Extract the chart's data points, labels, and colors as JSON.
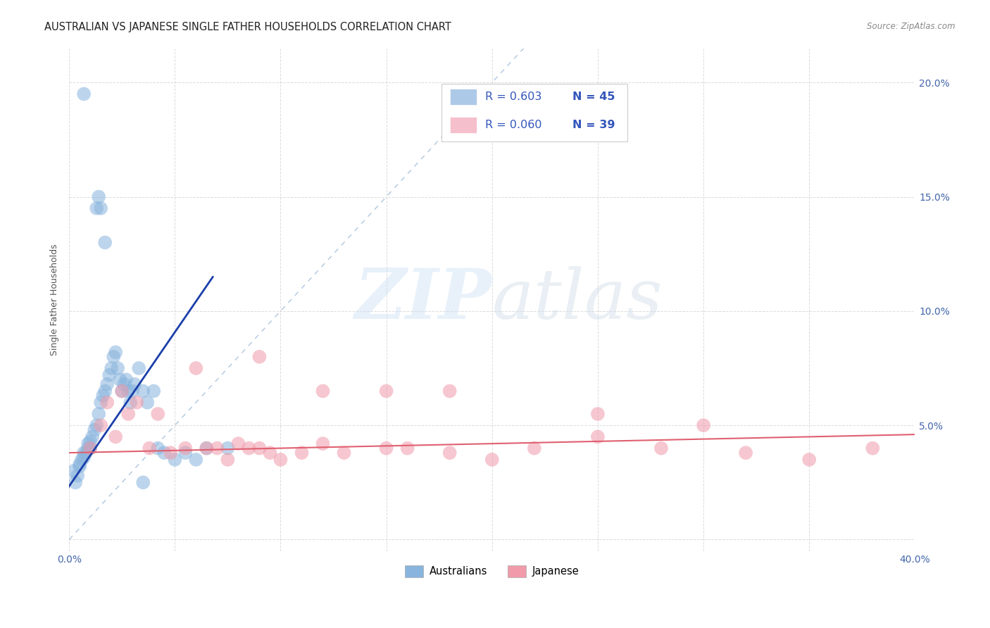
{
  "title": "AUSTRALIAN VS JAPANESE SINGLE FATHER HOUSEHOLDS CORRELATION CHART",
  "source": "Source: ZipAtlas.com",
  "ylabel": "Single Father Households",
  "watermark_zip": "ZIP",
  "watermark_atlas": "atlas",
  "legend_entries": [
    {
      "label_r": "R = 0.603",
      "label_n": "N = 45",
      "color": "#adc9e8"
    },
    {
      "label_r": "R = 0.060",
      "label_n": "N = 39",
      "color": "#f5bfcc"
    }
  ],
  "bottom_legend": [
    "Australians",
    "Japanese"
  ],
  "xlim": [
    0.0,
    0.4
  ],
  "ylim": [
    -0.005,
    0.215
  ],
  "xticks": [
    0.0,
    0.05,
    0.1,
    0.15,
    0.2,
    0.25,
    0.3,
    0.35,
    0.4
  ],
  "yticks": [
    0.0,
    0.05,
    0.1,
    0.15,
    0.2
  ],
  "background_color": "#ffffff",
  "grid_color": "#cccccc",
  "au_color": "#88b4dd",
  "jp_color": "#f09aaa",
  "au_line_color": "#1a3eaa",
  "jp_line_color": "#e06070",
  "diag_line_color": "#9ab8d8",
  "tick_color": "#4466aa",
  "au_scatter_x": [
    0.002,
    0.003,
    0.004,
    0.005,
    0.005,
    0.006,
    0.007,
    0.007,
    0.008,
    0.009,
    0.009,
    0.01,
    0.01,
    0.011,
    0.012,
    0.013,
    0.014,
    0.015,
    0.016,
    0.017,
    0.018,
    0.019,
    0.02,
    0.021,
    0.022,
    0.023,
    0.024,
    0.025,
    0.026,
    0.027,
    0.028,
    0.029,
    0.03,
    0.031,
    0.033,
    0.035,
    0.037,
    0.04,
    0.042,
    0.045,
    0.05,
    0.055,
    0.06,
    0.065,
    0.075
  ],
  "au_scatter_y": [
    0.03,
    0.025,
    0.028,
    0.032,
    0.033,
    0.035,
    0.038,
    0.036,
    0.038,
    0.04,
    0.042,
    0.04,
    0.043,
    0.045,
    0.048,
    0.05,
    0.055,
    0.06,
    0.063,
    0.065,
    0.068,
    0.072,
    0.075,
    0.08,
    0.082,
    0.075,
    0.07,
    0.065,
    0.068,
    0.07,
    0.065,
    0.06,
    0.065,
    0.068,
    0.075,
    0.065,
    0.06,
    0.065,
    0.04,
    0.038,
    0.035,
    0.038,
    0.035,
    0.04,
    0.04
  ],
  "au_outliers_x": [
    0.007,
    0.013,
    0.014,
    0.015,
    0.017,
    0.035
  ],
  "au_outliers_y": [
    0.195,
    0.145,
    0.15,
    0.145,
    0.13,
    0.025
  ],
  "jp_scatter_x": [
    0.01,
    0.015,
    0.018,
    0.022,
    0.025,
    0.028,
    0.032,
    0.038,
    0.042,
    0.048,
    0.055,
    0.06,
    0.065,
    0.07,
    0.075,
    0.08,
    0.085,
    0.09,
    0.095,
    0.1,
    0.11,
    0.12,
    0.13,
    0.15,
    0.16,
    0.18,
    0.2,
    0.22,
    0.25,
    0.28,
    0.3,
    0.32,
    0.35,
    0.38,
    0.25,
    0.18,
    0.09,
    0.12,
    0.15
  ],
  "jp_scatter_y": [
    0.04,
    0.05,
    0.06,
    0.045,
    0.065,
    0.055,
    0.06,
    0.04,
    0.055,
    0.038,
    0.04,
    0.075,
    0.04,
    0.04,
    0.035,
    0.042,
    0.04,
    0.04,
    0.038,
    0.035,
    0.038,
    0.042,
    0.038,
    0.04,
    0.04,
    0.038,
    0.035,
    0.04,
    0.045,
    0.04,
    0.05,
    0.038,
    0.035,
    0.04,
    0.055,
    0.065,
    0.08,
    0.065,
    0.065
  ],
  "au_line_x": [
    -0.001,
    0.068
  ],
  "au_line_y": [
    0.022,
    0.115
  ],
  "jp_line_x": [
    0.0,
    0.4
  ],
  "jp_line_y": [
    0.038,
    0.046
  ],
  "diag_line_x": [
    0.0,
    0.215
  ],
  "diag_line_y": [
    0.0,
    0.215
  ]
}
